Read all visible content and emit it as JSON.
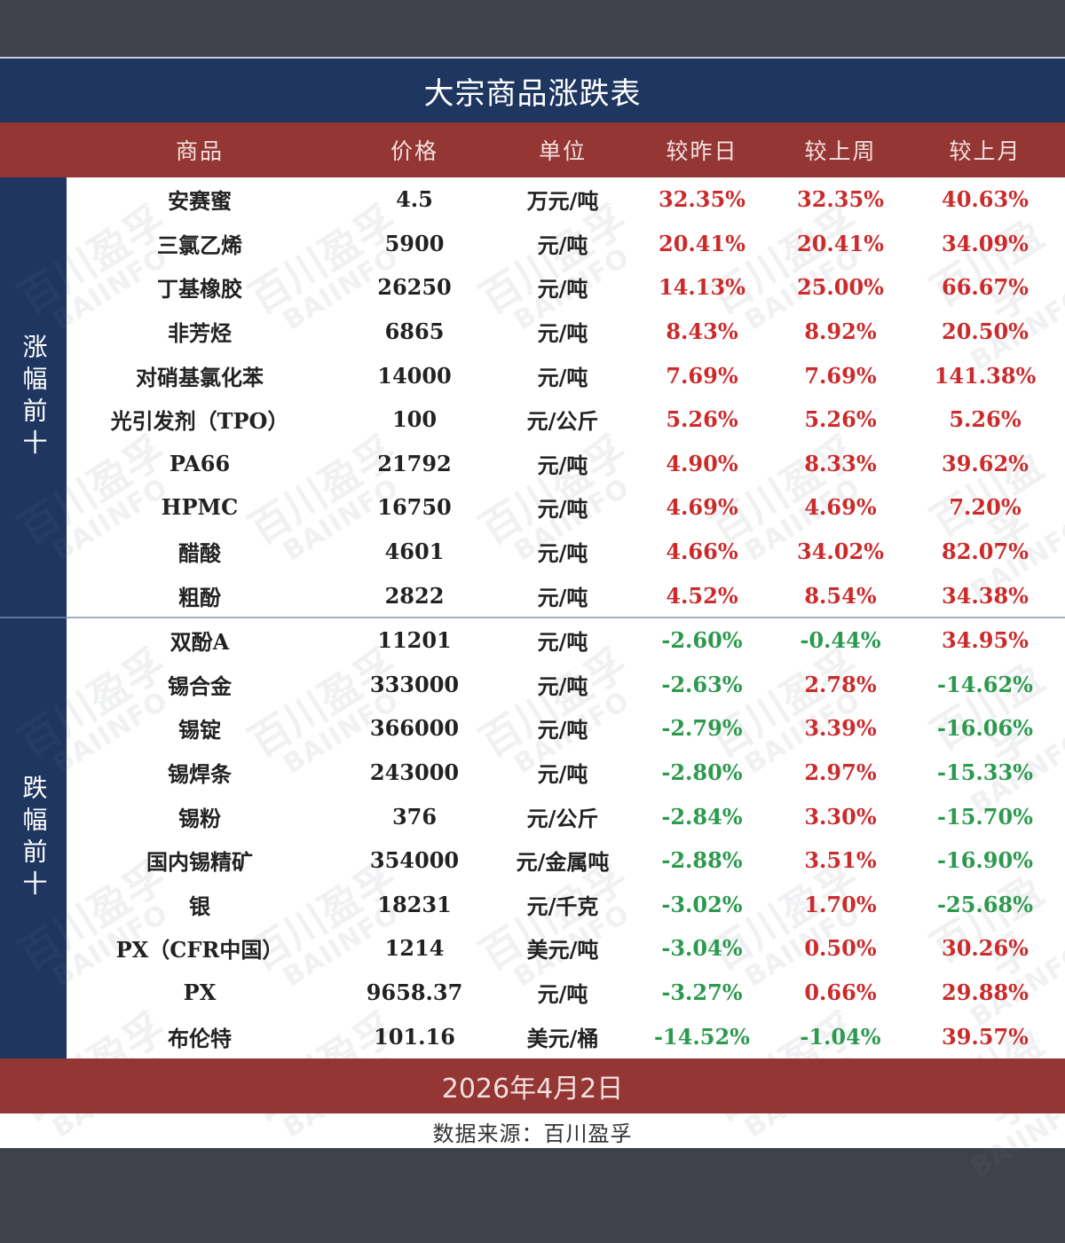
{
  "title": "大宗商品涨跌表",
  "columns": [
    "商品",
    "价格",
    "单位",
    "较昨日",
    "较上周",
    "较上月"
  ],
  "groups": {
    "up_label": "涨幅前十",
    "down_label": "跌幅前十"
  },
  "rows": [
    {
      "name": "安赛蜜",
      "price": "4.5",
      "unit": "万元/吨",
      "day": "32.35%",
      "week": "32.35%",
      "month": "40.63%",
      "day_dir": "up",
      "week_dir": "up",
      "month_dir": "up"
    },
    {
      "name": "三氯乙烯",
      "price": "5900",
      "unit": "元/吨",
      "day": "20.41%",
      "week": "20.41%",
      "month": "34.09%",
      "day_dir": "up",
      "week_dir": "up",
      "month_dir": "up"
    },
    {
      "name": "丁基橡胶",
      "price": "26250",
      "unit": "元/吨",
      "day": "14.13%",
      "week": "25.00%",
      "month": "66.67%",
      "day_dir": "up",
      "week_dir": "up",
      "month_dir": "up"
    },
    {
      "name": "非芳烃",
      "price": "6865",
      "unit": "元/吨",
      "day": "8.43%",
      "week": "8.92%",
      "month": "20.50%",
      "day_dir": "up",
      "week_dir": "up",
      "month_dir": "up"
    },
    {
      "name": "对硝基氯化苯",
      "price": "14000",
      "unit": "元/吨",
      "day": "7.69%",
      "week": "7.69%",
      "month": "141.38%",
      "day_dir": "up",
      "week_dir": "up",
      "month_dir": "up"
    },
    {
      "name": "光引发剂（TPO）",
      "price": "100",
      "unit": "元/公斤",
      "day": "5.26%",
      "week": "5.26%",
      "month": "5.26%",
      "day_dir": "up",
      "week_dir": "up",
      "month_dir": "up"
    },
    {
      "name": "PA66",
      "price": "21792",
      "unit": "元/吨",
      "day": "4.90%",
      "week": "8.33%",
      "month": "39.62%",
      "day_dir": "up",
      "week_dir": "up",
      "month_dir": "up"
    },
    {
      "name": "HPMC",
      "price": "16750",
      "unit": "元/吨",
      "day": "4.69%",
      "week": "4.69%",
      "month": "7.20%",
      "day_dir": "up",
      "week_dir": "up",
      "month_dir": "up"
    },
    {
      "name": "醋酸",
      "price": "4601",
      "unit": "元/吨",
      "day": "4.66%",
      "week": "34.02%",
      "month": "82.07%",
      "day_dir": "up",
      "week_dir": "up",
      "month_dir": "up"
    },
    {
      "name": "粗酚",
      "price": "2822",
      "unit": "元/吨",
      "day": "4.52%",
      "week": "8.54%",
      "month": "34.38%",
      "day_dir": "up",
      "week_dir": "up",
      "month_dir": "up"
    },
    {
      "name": "双酚A",
      "price": "11201",
      "unit": "元/吨",
      "day": "-2.60%",
      "week": "-0.44%",
      "month": "34.95%",
      "day_dir": "down",
      "week_dir": "down",
      "month_dir": "up"
    },
    {
      "name": "锡合金",
      "price": "333000",
      "unit": "元/吨",
      "day": "-2.63%",
      "week": "2.78%",
      "month": "-14.62%",
      "day_dir": "down",
      "week_dir": "up",
      "month_dir": "down"
    },
    {
      "name": "锡锭",
      "price": "366000",
      "unit": "元/吨",
      "day": "-2.79%",
      "week": "3.39%",
      "month": "-16.06%",
      "day_dir": "down",
      "week_dir": "up",
      "month_dir": "down"
    },
    {
      "name": "锡焊条",
      "price": "243000",
      "unit": "元/吨",
      "day": "-2.80%",
      "week": "2.97%",
      "month": "-15.33%",
      "day_dir": "down",
      "week_dir": "up",
      "month_dir": "down"
    },
    {
      "name": "锡粉",
      "price": "376",
      "unit": "元/公斤",
      "day": "-2.84%",
      "week": "3.30%",
      "month": "-15.70%",
      "day_dir": "down",
      "week_dir": "up",
      "month_dir": "down"
    },
    {
      "name": "国内锡精矿",
      "price": "354000",
      "unit": "元/金属吨",
      "day": "-2.88%",
      "week": "3.51%",
      "month": "-16.90%",
      "day_dir": "down",
      "week_dir": "up",
      "month_dir": "down"
    },
    {
      "name": "银",
      "price": "18231",
      "unit": "元/千克",
      "day": "-3.02%",
      "week": "1.70%",
      "month": "-25.68%",
      "day_dir": "down",
      "week_dir": "up",
      "month_dir": "down"
    },
    {
      "name": "PX（CFR中国）",
      "price": "1214",
      "unit": "美元/吨",
      "day": "-3.04%",
      "week": "0.50%",
      "month": "30.26%",
      "day_dir": "down",
      "week_dir": "up",
      "month_dir": "up"
    },
    {
      "name": "PX",
      "price": "9658.37",
      "unit": "元/吨",
      "day": "-3.27%",
      "week": "0.66%",
      "month": "29.88%",
      "day_dir": "down",
      "week_dir": "up",
      "month_dir": "up"
    },
    {
      "name": "布伦特",
      "price": "101.16",
      "unit": "美元/桶",
      "day": "-14.52%",
      "week": "-1.04%",
      "month": "39.57%",
      "day_dir": "down",
      "week_dir": "down",
      "month_dir": "up"
    }
  ],
  "date": "2026年4月2日",
  "source": "数据来源：百川盈孚",
  "watermark": {
    "cn": "百川盈孚",
    "en": "BAIINFO"
  },
  "colors": {
    "navy": "#1e3660",
    "maroon": "#943634",
    "up": "#cc2b2b",
    "down": "#2c9a4e"
  }
}
